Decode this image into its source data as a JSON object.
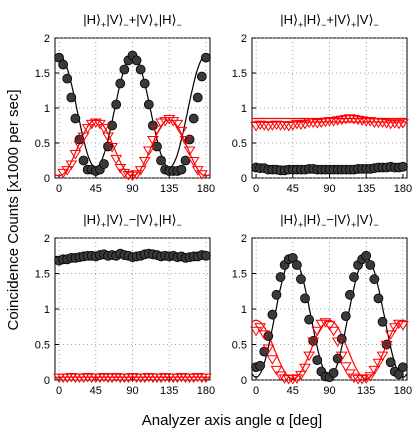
{
  "figure": {
    "ylabel": "Coincidence Counts [x1000 per sec]",
    "xlabel": "Analyzer axis angle α [deg]"
  },
  "chart_data": [
    {
      "type": "scatter",
      "title_parts": [
        "|H⟩",
        "+",
        "|V⟩",
        "−",
        "+|V⟩",
        "+",
        "|H⟩",
        "−"
      ],
      "xlim": [
        -5,
        185
      ],
      "ylim": [
        0,
        2
      ],
      "xticks": [
        0,
        45,
        90,
        135,
        180
      ],
      "yticks": [
        0,
        0.5,
        1,
        1.5,
        2
      ],
      "grid": true,
      "series": [
        {
          "marker": "circle",
          "color": "#3a3a3a",
          "x": [
            0,
            5,
            10,
            15,
            20,
            25,
            30,
            35,
            40,
            45,
            50,
            55,
            60,
            65,
            70,
            75,
            80,
            85,
            90,
            95,
            100,
            105,
            110,
            115,
            120,
            125,
            130,
            135,
            140,
            145,
            150,
            155,
            160,
            165,
            170,
            175,
            180
          ],
          "y": [
            1.72,
            1.62,
            1.42,
            1.15,
            0.85,
            0.55,
            0.25,
            0.12,
            0.12,
            0.1,
            0.12,
            0.2,
            0.45,
            0.75,
            1.05,
            1.35,
            1.55,
            1.68,
            1.75,
            1.68,
            1.55,
            1.35,
            1.05,
            0.75,
            0.45,
            0.25,
            0.12,
            0.1,
            0.1,
            0.1,
            0.12,
            0.25,
            0.55,
            0.85,
            1.15,
            1.45,
            1.72
          ]
        },
        {
          "marker": "triangle-down",
          "color": "#ff0000",
          "x": [
            5,
            10,
            15,
            20,
            25,
            30,
            35,
            40,
            45,
            50,
            55,
            60,
            65,
            70,
            75,
            80,
            85,
            90,
            95,
            100,
            105,
            110,
            115,
            120,
            125,
            130,
            135,
            140,
            145,
            150,
            155,
            160,
            165,
            170,
            175
          ],
          "y": [
            0.08,
            0.12,
            0.2,
            0.35,
            0.48,
            0.6,
            0.72,
            0.78,
            0.8,
            0.78,
            0.72,
            0.6,
            0.45,
            0.28,
            0.15,
            0.08,
            0.05,
            0.04,
            0.06,
            0.12,
            0.25,
            0.4,
            0.55,
            0.7,
            0.8,
            0.82,
            0.85,
            0.82,
            0.78,
            0.68,
            0.55,
            0.4,
            0.25,
            0.12,
            0.06
          ]
        }
      ],
      "fits": [
        {
          "color": "#000000",
          "a": 0.95,
          "b": 0.8,
          "period": 90,
          "phase": 0
        },
        {
          "color": "#ff0000",
          "a": 0.43,
          "b": -0.4,
          "period": 90,
          "phase": 0
        }
      ]
    },
    {
      "type": "scatter",
      "title_parts": [
        "|H⟩",
        "+",
        "|H⟩",
        "−",
        "+|V⟩",
        "+",
        "|V⟩",
        "−"
      ],
      "xlim": [
        -5,
        185
      ],
      "ylim": [
        0,
        2
      ],
      "xticks": [
        0,
        45,
        90,
        135,
        180
      ],
      "yticks": [
        0,
        0.5,
        1,
        1.5,
        2
      ],
      "grid": true,
      "series": [
        {
          "marker": "circle",
          "color": "#3a3a3a",
          "x": [
            0,
            5,
            10,
            15,
            20,
            25,
            30,
            35,
            40,
            45,
            50,
            55,
            60,
            65,
            70,
            75,
            80,
            85,
            90,
            95,
            100,
            105,
            110,
            115,
            120,
            125,
            130,
            135,
            140,
            145,
            150,
            155,
            160,
            165,
            170,
            175,
            180
          ],
          "y": [
            0.15,
            0.14,
            0.14,
            0.12,
            0.12,
            0.12,
            0.11,
            0.11,
            0.12,
            0.12,
            0.12,
            0.12,
            0.12,
            0.13,
            0.13,
            0.12,
            0.12,
            0.12,
            0.12,
            0.12,
            0.12,
            0.12,
            0.12,
            0.12,
            0.12,
            0.13,
            0.13,
            0.13,
            0.13,
            0.14,
            0.15,
            0.15,
            0.15,
            0.16,
            0.15,
            0.15,
            0.16
          ]
        },
        {
          "marker": "triangle-down",
          "color": "#ff0000",
          "x": [
            0,
            5,
            10,
            15,
            20,
            25,
            30,
            35,
            40,
            45,
            50,
            55,
            60,
            65,
            70,
            75,
            80,
            85,
            90,
            95,
            100,
            105,
            110,
            115,
            120,
            125,
            130,
            135,
            140,
            145,
            150,
            155,
            160,
            165,
            170,
            175,
            180
          ],
          "y": [
            0.75,
            0.77,
            0.76,
            0.75,
            0.76,
            0.77,
            0.76,
            0.76,
            0.75,
            0.76,
            0.78,
            0.77,
            0.78,
            0.8,
            0.8,
            0.79,
            0.8,
            0.81,
            0.82,
            0.82,
            0.83,
            0.84,
            0.85,
            0.86,
            0.85,
            0.84,
            0.83,
            0.82,
            0.82,
            0.8,
            0.8,
            0.8,
            0.79,
            0.78,
            0.79,
            0.78,
            0.79
          ]
        }
      ],
      "fits": [
        {
          "color": "#000000",
          "a": 0.13,
          "b": 0.0,
          "period": 90,
          "phase": 0
        },
        {
          "color": "#ff0000",
          "a": 0.8,
          "b": 0.0,
          "period": 90,
          "phase": 0
        },
        {
          "color": "#ff0000",
          "a": 0.85,
          "b": 0.0,
          "period": 90,
          "phase": 0
        }
      ]
    },
    {
      "type": "scatter",
      "title_parts": [
        "|H⟩",
        "+",
        "|V⟩",
        "−",
        "−|V⟩",
        "+",
        "|H⟩",
        "−"
      ],
      "xlim": [
        -5,
        185
      ],
      "ylim": [
        0,
        2
      ],
      "xticks": [
        0,
        45,
        90,
        135,
        180
      ],
      "yticks": [
        0,
        0.5,
        1,
        1.5,
        2
      ],
      "grid": true,
      "series": [
        {
          "marker": "circle",
          "color": "#3a3a3a",
          "x": [
            0,
            5,
            10,
            15,
            20,
            25,
            30,
            35,
            40,
            45,
            50,
            55,
            60,
            65,
            70,
            75,
            80,
            85,
            90,
            95,
            100,
            105,
            110,
            115,
            120,
            125,
            130,
            135,
            140,
            145,
            150,
            155,
            160,
            165,
            170,
            175,
            180
          ],
          "y": [
            1.68,
            1.7,
            1.7,
            1.72,
            1.72,
            1.73,
            1.74,
            1.75,
            1.75,
            1.74,
            1.76,
            1.77,
            1.75,
            1.76,
            1.75,
            1.78,
            1.76,
            1.75,
            1.73,
            1.74,
            1.75,
            1.77,
            1.78,
            1.77,
            1.76,
            1.74,
            1.75,
            1.74,
            1.75,
            1.73,
            1.74,
            1.72,
            1.73,
            1.74,
            1.74,
            1.76,
            1.75
          ]
        },
        {
          "marker": "triangle-down",
          "color": "#ff0000",
          "x": [
            0,
            5,
            10,
            15,
            20,
            25,
            30,
            35,
            40,
            45,
            50,
            55,
            60,
            65,
            70,
            75,
            80,
            85,
            90,
            95,
            100,
            105,
            110,
            115,
            120,
            125,
            130,
            135,
            140,
            145,
            150,
            155,
            160,
            165,
            170,
            175,
            180
          ],
          "y": [
            0.04,
            0.04,
            0.04,
            0.05,
            0.04,
            0.04,
            0.04,
            0.05,
            0.04,
            0.04,
            0.04,
            0.05,
            0.04,
            0.04,
            0.05,
            0.04,
            0.04,
            0.04,
            0.05,
            0.04,
            0.04,
            0.04,
            0.05,
            0.04,
            0.04,
            0.04,
            0.05,
            0.04,
            0.04,
            0.04,
            0.05,
            0.04,
            0.04,
            0.04,
            0.05,
            0.04,
            0.04
          ]
        }
      ],
      "fits": [
        {
          "color": "#000000",
          "a": 1.74,
          "b": 0.0,
          "period": 90,
          "phase": 0
        },
        {
          "color": "#ff0000",
          "a": 0.04,
          "b": 0.0,
          "period": 90,
          "phase": 0
        }
      ]
    },
    {
      "type": "scatter",
      "title_parts": [
        "|H⟩",
        "+",
        "|H⟩",
        "−",
        "−|V⟩",
        "+",
        "|V⟩",
        "−"
      ],
      "xlim": [
        -5,
        185
      ],
      "ylim": [
        0,
        2
      ],
      "xticks": [
        0,
        45,
        90,
        135,
        180
      ],
      "yticks": [
        0,
        0.5,
        1,
        1.5,
        2
      ],
      "grid": true,
      "series": [
        {
          "marker": "circle",
          "color": "#3a3a3a",
          "x": [
            0,
            5,
            10,
            15,
            20,
            25,
            30,
            35,
            40,
            45,
            50,
            55,
            60,
            65,
            70,
            75,
            80,
            85,
            90,
            95,
            100,
            105,
            110,
            115,
            120,
            125,
            130,
            135,
            140,
            145,
            150,
            155,
            160,
            165,
            170,
            175,
            180
          ],
          "y": [
            0.18,
            0.2,
            0.4,
            0.62,
            0.92,
            1.2,
            1.45,
            1.62,
            1.7,
            1.72,
            1.62,
            1.42,
            1.15,
            0.85,
            0.55,
            0.28,
            0.12,
            0.05,
            0.04,
            0.1,
            0.3,
            0.58,
            0.9,
            1.2,
            1.45,
            1.62,
            1.7,
            1.75,
            1.62,
            1.42,
            1.15,
            0.82,
            0.5,
            0.25,
            0.12,
            0.08,
            0.18
          ]
        },
        {
          "marker": "triangle-down",
          "color": "#ff0000",
          "x": [
            0,
            5,
            10,
            15,
            20,
            25,
            30,
            35,
            40,
            45,
            50,
            55,
            60,
            65,
            70,
            75,
            80,
            85,
            90,
            95,
            100,
            105,
            110,
            115,
            120,
            125,
            130,
            135,
            140,
            145,
            150,
            155,
            160,
            165,
            170,
            175,
            180
          ],
          "y": [
            0.7,
            0.75,
            0.65,
            0.45,
            0.3,
            0.15,
            0.07,
            0.03,
            0.02,
            0.02,
            0.03,
            0.08,
            0.18,
            0.35,
            0.55,
            0.7,
            0.8,
            0.82,
            0.78,
            0.7,
            0.55,
            0.35,
            0.2,
            0.1,
            0.04,
            0.02,
            0.02,
            0.03,
            0.06,
            0.15,
            0.25,
            0.35,
            0.5,
            0.65,
            0.75,
            0.8,
            0.78
          ]
        }
      ],
      "fits": [
        {
          "color": "#000000",
          "a": 0.88,
          "b": -0.84,
          "period": 90,
          "phase": 0
        },
        {
          "color": "#ff0000",
          "a": 0.43,
          "b": 0.41,
          "period": 90,
          "phase": 0
        }
      ]
    }
  ]
}
